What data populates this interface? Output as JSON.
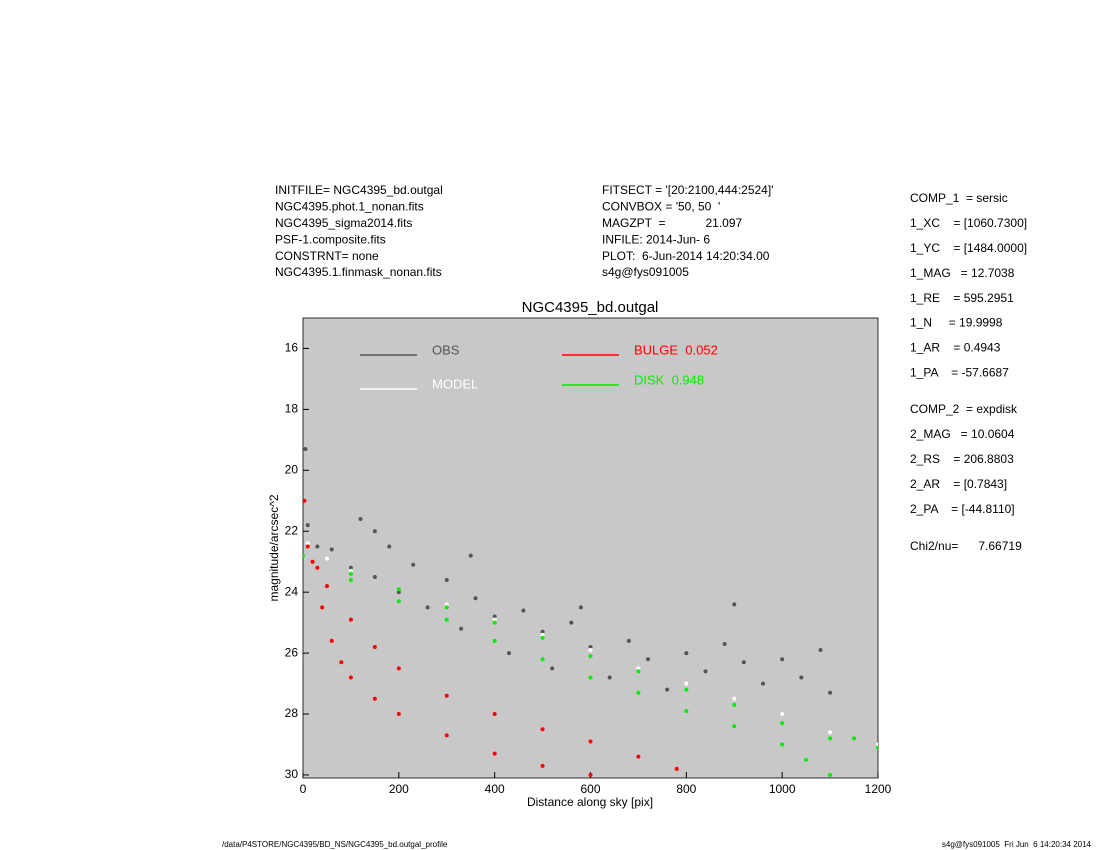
{
  "chart_data": {
    "type": "scatter",
    "title": "NGC4395_bd.outgal",
    "x_label": "Distance along sky [pix]",
    "y_label": "magnitude/arcsec^2",
    "xlim": [
      0,
      1200
    ],
    "xticks": [
      0,
      200,
      400,
      600,
      800,
      1000,
      1200
    ],
    "ylim": [
      30.1,
      15
    ],
    "yticks": [
      16,
      18,
      20,
      22,
      24,
      26,
      28,
      30
    ],
    "background": "#c8c8c8",
    "series": [
      {
        "name": "OBS",
        "color": "#555555",
        "x": [
          5,
          10,
          30,
          60,
          100,
          120,
          150,
          180,
          200,
          230,
          260,
          300,
          330,
          360,
          400,
          430,
          460,
          500,
          520,
          560,
          600,
          640,
          680,
          720,
          760,
          800,
          840,
          880,
          920,
          960,
          1000,
          1040,
          1080,
          1100,
          900,
          150,
          350,
          580
        ],
        "values": [
          19.3,
          21.8,
          22.5,
          22.6,
          23.2,
          21.6,
          23.5,
          22.5,
          24.0,
          23.1,
          24.5,
          23.6,
          25.2,
          24.2,
          24.8,
          26.0,
          24.6,
          25.3,
          26.5,
          25.0,
          25.8,
          26.8,
          25.6,
          26.2,
          27.2,
          26.0,
          26.6,
          25.7,
          26.3,
          27.0,
          26.2,
          26.8,
          25.9,
          27.3,
          24.4,
          22.0,
          22.8,
          24.5
        ]
      },
      {
        "name": "MODEL",
        "color": "#ffffff",
        "x": [
          10,
          50,
          100,
          200,
          300,
          400,
          500,
          600,
          700,
          800,
          900,
          1000,
          1100,
          1200
        ],
        "values": [
          22.4,
          22.9,
          23.3,
          23.9,
          24.4,
          24.9,
          25.4,
          25.9,
          26.5,
          27.0,
          27.5,
          28.0,
          28.6,
          29.0
        ]
      },
      {
        "name": "BULGE  0.052",
        "color": "#ff0000",
        "x": [
          3,
          10,
          20,
          40,
          60,
          80,
          100,
          150,
          200,
          300,
          400,
          500,
          600,
          30,
          50,
          100,
          150,
          200,
          300,
          400,
          500,
          600,
          700,
          780
        ],
        "values": [
          21.0,
          22.5,
          23.0,
          24.5,
          25.6,
          26.3,
          26.8,
          27.5,
          28.0,
          28.7,
          29.3,
          29.7,
          30.0,
          23.2,
          23.8,
          24.9,
          25.8,
          26.5,
          27.4,
          28.0,
          28.5,
          28.9,
          29.4,
          29.8
        ]
      },
      {
        "name": "DISK  0.948",
        "color": "#00ee00",
        "x": [
          0,
          100,
          200,
          300,
          400,
          500,
          600,
          700,
          800,
          900,
          1000,
          1100,
          1200,
          100,
          200,
          300,
          400,
          500,
          600,
          700,
          800,
          900,
          1000,
          1050,
          1100,
          1150
        ],
        "values": [
          22.8,
          23.4,
          23.9,
          24.5,
          25.0,
          25.5,
          26.1,
          26.6,
          27.2,
          27.7,
          28.3,
          28.8,
          29.1,
          23.6,
          24.3,
          24.9,
          25.6,
          26.2,
          26.8,
          27.3,
          27.9,
          28.4,
          29.0,
          29.5,
          30.0,
          28.8
        ]
      }
    ]
  },
  "info_left": [
    "INITFILE= NGC4395_bd.outgal",
    "NGC4395.phot.1_nonan.fits",
    "NGC4395_sigma2014.fits",
    "PSF-1.composite.fits",
    "CONSTRNT= none",
    "NGC4395.1.finmask_nonan.fits"
  ],
  "info_middle": [
    "FITSECT = '[20:2100,444:2524]'",
    "CONVBOX = '50, 50  '",
    "MAGZPT  =            21.097",
    "INFILE: 2014-Jun- 6",
    "PLOT:  6-Jun-2014 14:20:34.00",
    "s4g@fys091005"
  ],
  "comp1": [
    "COMP_1  = sersic",
    "1_XC    = [1060.7300]",
    "1_YC    = [1484.0000]",
    "1_MAG   = 12.7038",
    "1_RE    = 595.2951",
    "1_N     = 19.9998",
    "1_AR    = 0.4943",
    "1_PA    = -57.6687"
  ],
  "comp2": [
    "COMP_2  = expdisk",
    "2_MAG   = 10.0604",
    "2_RS    = 206.8803",
    "2_AR    = [0.7843]",
    "2_PA    = [-44.8110]"
  ],
  "chi2": "Chi2/nu=      7.66719",
  "footer_left": "/data/P4STORE/NGC4395/BD_NS/NGC4395_bd.outgal_profile",
  "footer_right": "s4g@fys091005  Fri Jun  6 14:20:34 2014"
}
